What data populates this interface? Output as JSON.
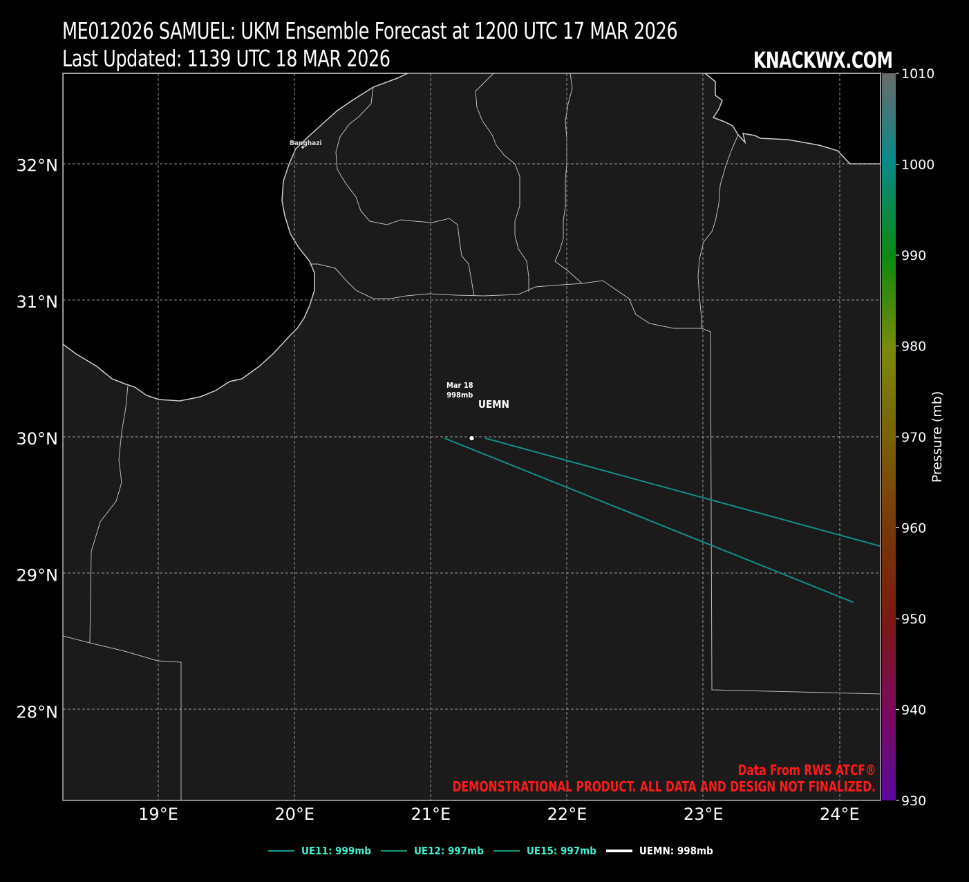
{
  "title_line1": "ME012026 SAMUEL: UKM Ensemble Forecast at 1200 UTC 17 MAR 2026",
  "title_line2": "Last Updated: 1139 UTC 18 MAR 2026",
  "brand": "KNACKWX.COM",
  "city_label": "Banghazi",
  "lat_ticks": [
    "32°N",
    "31°N",
    "30°N",
    "29°N",
    "28°N"
  ],
  "lon_ticks": [
    "19°E",
    "20°E",
    "21°E",
    "22°E",
    "23°E",
    "24°E"
  ],
  "colorbar": {
    "label": "Pressure (mb)",
    "ticks": [
      "1010",
      "1000",
      "990",
      "980",
      "970",
      "960",
      "950",
      "940",
      "930"
    ]
  },
  "point_label": {
    "date": "Mar 18",
    "pressure": "998mb"
  },
  "storm_label": "UEMN",
  "credit_line1": "Data From RWS ATCF®",
  "credit_line2": "DEMONSTRATIONAL PRODUCT. ALL DATA AND DESIGN NOT FINALIZED.",
  "legend": [
    {
      "label": "UE11: 999mb",
      "color": "#1a9a94"
    },
    {
      "label": "UE12: 997mb",
      "color": "#1a9a7a"
    },
    {
      "label": "UE15: 997mb",
      "color": "#1a9a7a"
    },
    {
      "label": "UEMN: 998mb",
      "color": "#ffffff"
    }
  ],
  "colors": {
    "ocean": "#000000",
    "land": "#1b1b1b",
    "track": "#148f8a",
    "credit": "#ff1a1a"
  },
  "map_data": {
    "extent_lon": [
      18.3,
      24.3
    ],
    "extent_lat": [
      27.35,
      32.67
    ],
    "tracks": [
      {
        "name": "UE11",
        "points": [
          [
            21.4,
            30.0
          ],
          [
            24.3,
            29.21
          ]
        ]
      },
      {
        "name": "UE12",
        "points": [
          [
            21.1,
            30.0
          ],
          [
            24.1,
            28.8
          ]
        ]
      }
    ],
    "uemn_point": {
      "lon": 21.3,
      "lat": 30.0
    }
  }
}
